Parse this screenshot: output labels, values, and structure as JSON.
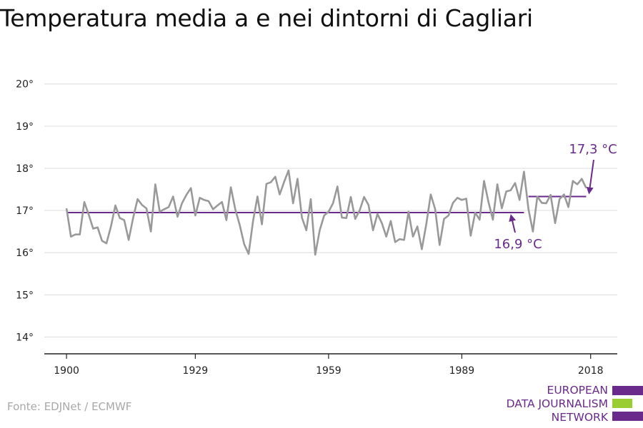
{
  "chart_data": {
    "type": "line",
    "title": "Temperatura media a e nei dintorni di Cagliari",
    "x_ticks": [
      "1900",
      "1929",
      "1959",
      "1989",
      "2018"
    ],
    "y_ticks": [
      "14°",
      "15°",
      "16°",
      "17°",
      "18°",
      "19°",
      "20°"
    ],
    "xlim": [
      1895,
      2024
    ],
    "ylim": [
      13.6,
      20.3
    ],
    "grid": true,
    "series": [
      {
        "color": "#999999",
        "x_start": 1900,
        "values": [
          17.05,
          16.38,
          16.43,
          16.43,
          17.2,
          16.9,
          16.57,
          16.6,
          16.28,
          16.22,
          16.62,
          17.12,
          16.82,
          16.77,
          16.3,
          16.82,
          17.27,
          17.13,
          17.05,
          16.5,
          17.62,
          16.97,
          17.03,
          17.08,
          17.33,
          16.85,
          17.17,
          17.37,
          17.53,
          16.88,
          17.3,
          17.25,
          17.22,
          17.03,
          17.12,
          17.2,
          16.77,
          17.55,
          17.03,
          16.65,
          16.2,
          15.97,
          16.75,
          17.33,
          16.67,
          17.63,
          17.67,
          17.8,
          17.38,
          17.68,
          17.95,
          17.17,
          17.75,
          16.83,
          16.53,
          17.27,
          15.95,
          16.53,
          16.88,
          16.97,
          17.17,
          17.57,
          16.83,
          16.82,
          17.32,
          16.8,
          17.0,
          17.32,
          17.13,
          16.53,
          16.92,
          16.7,
          16.38,
          16.75,
          16.25,
          16.32,
          16.3,
          16.97,
          16.38,
          16.62,
          16.08,
          16.68,
          17.38,
          17.03,
          16.18,
          16.8,
          16.88,
          17.18,
          17.3,
          17.25,
          17.28,
          16.4,
          16.95,
          16.78,
          17.7,
          17.2,
          16.78,
          17.62,
          17.05,
          17.45,
          17.48,
          17.65,
          17.25,
          17.92,
          17.03,
          16.5,
          17.33,
          17.18,
          17.17,
          17.37,
          16.7,
          17.27,
          17.38,
          17.08,
          17.7,
          17.62,
          17.75,
          17.53
        ]
      }
    ],
    "annotations": [
      {
        "text": "16,9 °C",
        "x_from": 1900,
        "x_to": 2003,
        "value": 16.95,
        "color": "#6a2a8c"
      },
      {
        "text": "17,3 °C",
        "x_from": 2004,
        "x_to": 2017,
        "value": 17.33,
        "color": "#6a2a8c"
      }
    ],
    "source": "Fonte: EDJNet / ECMWF"
  },
  "logo": {
    "lines": [
      "EUROPEAN",
      "DATA JOURNALISM",
      "NETWORK"
    ],
    "colors": [
      "#6a2a8c",
      "#9acd32",
      "#6a2a8c"
    ]
  }
}
